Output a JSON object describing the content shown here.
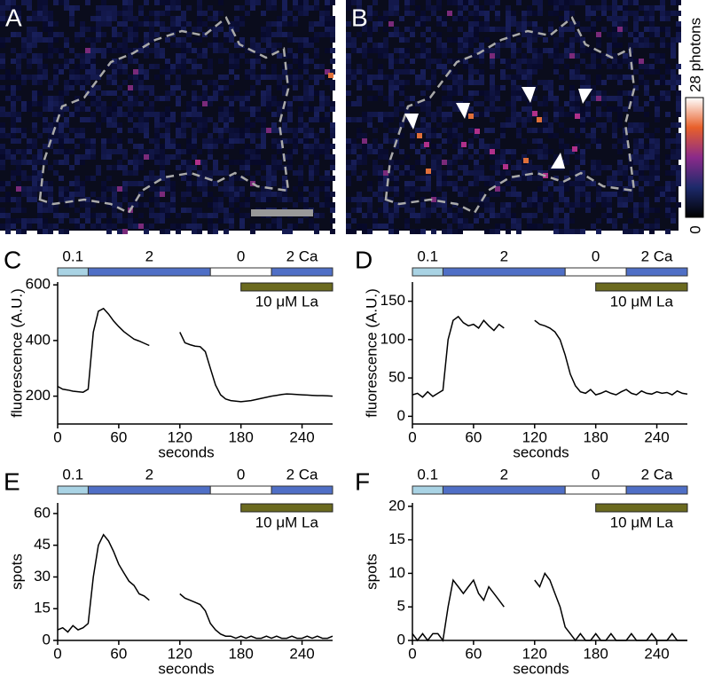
{
  "images": {
    "panels": [
      "A",
      "B"
    ],
    "colorbar": {
      "lim": [
        0,
        28
      ],
      "ticks": [
        0,
        {
          "value": 28,
          "label": "28 photons"
        }
      ]
    }
  },
  "chart_data": [
    {
      "type": "line",
      "panel": "C",
      "color": "#000000",
      "protocol": [
        {
          "label": "0.1",
          "start": 0,
          "end": 30,
          "color": "#a9d3e4"
        },
        {
          "label": "2",
          "start": 30,
          "end": 150,
          "color": "#4f6fc6"
        },
        {
          "label": "0",
          "start": 150,
          "end": 210,
          "color": "#ffffff"
        },
        {
          "label": "2 Ca",
          "start": 210,
          "end": 270,
          "color": "#4f6fc6"
        }
      ],
      "treatment": {
        "label": "10 μM La",
        "start": 180,
        "end": 270,
        "color": "#6b6a1f"
      },
      "x": [
        0,
        5,
        10,
        15,
        20,
        25,
        30,
        35,
        40,
        45,
        50,
        55,
        60,
        65,
        70,
        75,
        80,
        85,
        90,
        95,
        100,
        105,
        110,
        115,
        120,
        125,
        130,
        135,
        140,
        145,
        150,
        155,
        160,
        165,
        170,
        175,
        180,
        185,
        190,
        195,
        200,
        205,
        210,
        215,
        220,
        225,
        230,
        235,
        240,
        245,
        250,
        255,
        260,
        265,
        270
      ],
      "values": [
        235,
        225,
        222,
        218,
        216,
        214,
        225,
        430,
        505,
        515,
        495,
        470,
        450,
        432,
        418,
        405,
        398,
        390,
        382,
        null,
        null,
        null,
        null,
        null,
        430,
        392,
        385,
        380,
        378,
        360,
        300,
        240,
        205,
        190,
        184,
        182,
        180,
        182,
        184,
        188,
        192,
        196,
        200,
        203,
        206,
        208,
        207,
        206,
        205,
        204,
        203,
        202,
        202,
        201,
        200
      ],
      "xlim": [
        0,
        270
      ],
      "ylim": [
        100,
        610
      ],
      "xticks": [
        0,
        60,
        120,
        180,
        240
      ],
      "yticks": [
        200,
        400,
        600
      ],
      "xlabel": "seconds",
      "ylabel": "fluorescence (A.U.)"
    },
    {
      "type": "line",
      "panel": "D",
      "color": "#000000",
      "protocol": [
        {
          "label": "0.1",
          "start": 0,
          "end": 30,
          "color": "#a9d3e4"
        },
        {
          "label": "2",
          "start": 30,
          "end": 150,
          "color": "#4f6fc6"
        },
        {
          "label": "0",
          "start": 150,
          "end": 210,
          "color": "#ffffff"
        },
        {
          "label": "2 Ca",
          "start": 210,
          "end": 270,
          "color": "#4f6fc6"
        }
      ],
      "treatment": {
        "label": "10 μM La",
        "start": 180,
        "end": 270,
        "color": "#6b6a1f"
      },
      "x": [
        0,
        5,
        10,
        15,
        20,
        25,
        30,
        35,
        40,
        45,
        50,
        55,
        60,
        65,
        70,
        75,
        80,
        85,
        90,
        95,
        100,
        105,
        110,
        115,
        120,
        125,
        130,
        135,
        140,
        145,
        150,
        155,
        160,
        165,
        170,
        175,
        180,
        185,
        190,
        195,
        200,
        205,
        210,
        215,
        220,
        225,
        230,
        235,
        240,
        245,
        250,
        255,
        260,
        265,
        270
      ],
      "values": [
        28,
        30,
        25,
        32,
        26,
        30,
        34,
        100,
        125,
        130,
        122,
        118,
        120,
        115,
        125,
        118,
        112,
        120,
        115,
        null,
        null,
        null,
        null,
        null,
        125,
        120,
        118,
        115,
        110,
        100,
        80,
        55,
        40,
        32,
        30,
        35,
        28,
        30,
        33,
        30,
        28,
        32,
        35,
        30,
        28,
        33,
        30,
        29,
        32,
        30,
        31,
        28,
        33,
        30,
        29
      ],
      "xlim": [
        0,
        270
      ],
      "ylim": [
        -10,
        175
      ],
      "xticks": [
        0,
        60,
        120,
        180,
        240
      ],
      "yticks": [
        0,
        50,
        100,
        150
      ],
      "xlabel": "seconds",
      "ylabel": "fluorescence (A.U.)"
    },
    {
      "type": "line",
      "panel": "E",
      "color": "#000000",
      "protocol": [
        {
          "label": "0.1",
          "start": 0,
          "end": 30,
          "color": "#a9d3e4"
        },
        {
          "label": "2",
          "start": 30,
          "end": 150,
          "color": "#4f6fc6"
        },
        {
          "label": "0",
          "start": 150,
          "end": 210,
          "color": "#ffffff"
        },
        {
          "label": "2 Ca",
          "start": 210,
          "end": 270,
          "color": "#4f6fc6"
        }
      ],
      "treatment": {
        "label": "10 μM La",
        "start": 180,
        "end": 270,
        "color": "#6b6a1f"
      },
      "x": [
        0,
        5,
        10,
        15,
        20,
        25,
        30,
        35,
        40,
        45,
        50,
        55,
        60,
        65,
        70,
        75,
        80,
        85,
        90,
        95,
        100,
        105,
        110,
        115,
        120,
        125,
        130,
        135,
        140,
        145,
        150,
        155,
        160,
        165,
        170,
        175,
        180,
        185,
        190,
        195,
        200,
        205,
        210,
        215,
        220,
        225,
        230,
        235,
        240,
        245,
        250,
        255,
        260,
        265,
        270
      ],
      "values": [
        5,
        6,
        4,
        7,
        5,
        6,
        8,
        30,
        45,
        50,
        47,
        42,
        36,
        32,
        28,
        26,
        22,
        21,
        19,
        null,
        null,
        null,
        null,
        null,
        22,
        20,
        19,
        18,
        17,
        14,
        8,
        5,
        3,
        2,
        2,
        1,
        2,
        1,
        2,
        1,
        1,
        2,
        1,
        2,
        1,
        1,
        2,
        1,
        1,
        2,
        1,
        2,
        1,
        1,
        2
      ],
      "xlim": [
        0,
        270
      ],
      "ylim": [
        0,
        65
      ],
      "xticks": [
        0,
        60,
        120,
        180,
        240
      ],
      "yticks": [
        0,
        15,
        30,
        45,
        60
      ],
      "xlabel": "seconds",
      "ylabel": "spots"
    },
    {
      "type": "line",
      "panel": "F",
      "color": "#000000",
      "protocol": [
        {
          "label": "0.1",
          "start": 0,
          "end": 30,
          "color": "#a9d3e4"
        },
        {
          "label": "2",
          "start": 30,
          "end": 150,
          "color": "#4f6fc6"
        },
        {
          "label": "0",
          "start": 150,
          "end": 210,
          "color": "#ffffff"
        },
        {
          "label": "2 Ca",
          "start": 210,
          "end": 270,
          "color": "#4f6fc6"
        }
      ],
      "treatment": {
        "label": "10 μM La",
        "start": 180,
        "end": 270,
        "color": "#6b6a1f"
      },
      "x": [
        0,
        5,
        10,
        15,
        20,
        25,
        30,
        35,
        40,
        45,
        50,
        55,
        60,
        65,
        70,
        75,
        80,
        85,
        90,
        95,
        100,
        105,
        110,
        115,
        120,
        125,
        130,
        135,
        140,
        145,
        150,
        155,
        160,
        165,
        170,
        175,
        180,
        185,
        190,
        195,
        200,
        205,
        210,
        215,
        220,
        225,
        230,
        235,
        240,
        245,
        250,
        255,
        260,
        265,
        270
      ],
      "values": [
        1,
        0,
        1,
        0,
        1,
        1,
        0,
        5,
        9,
        8,
        7,
        8,
        9,
        7,
        6,
        8,
        7,
        6,
        5,
        null,
        null,
        null,
        null,
        null,
        9,
        8,
        10,
        9,
        7,
        5,
        2,
        1,
        0,
        1,
        0,
        0,
        1,
        0,
        0,
        1,
        0,
        0,
        0,
        1,
        0,
        0,
        0,
        1,
        0,
        0,
        0,
        1,
        0,
        0,
        0
      ],
      "xlim": [
        0,
        270
      ],
      "ylim": [
        0,
        20.5
      ],
      "xticks": [
        0,
        60,
        120,
        180,
        240
      ],
      "yticks": [
        0,
        5,
        10,
        15,
        20
      ],
      "xlabel": "seconds",
      "ylabel": "spots"
    }
  ]
}
